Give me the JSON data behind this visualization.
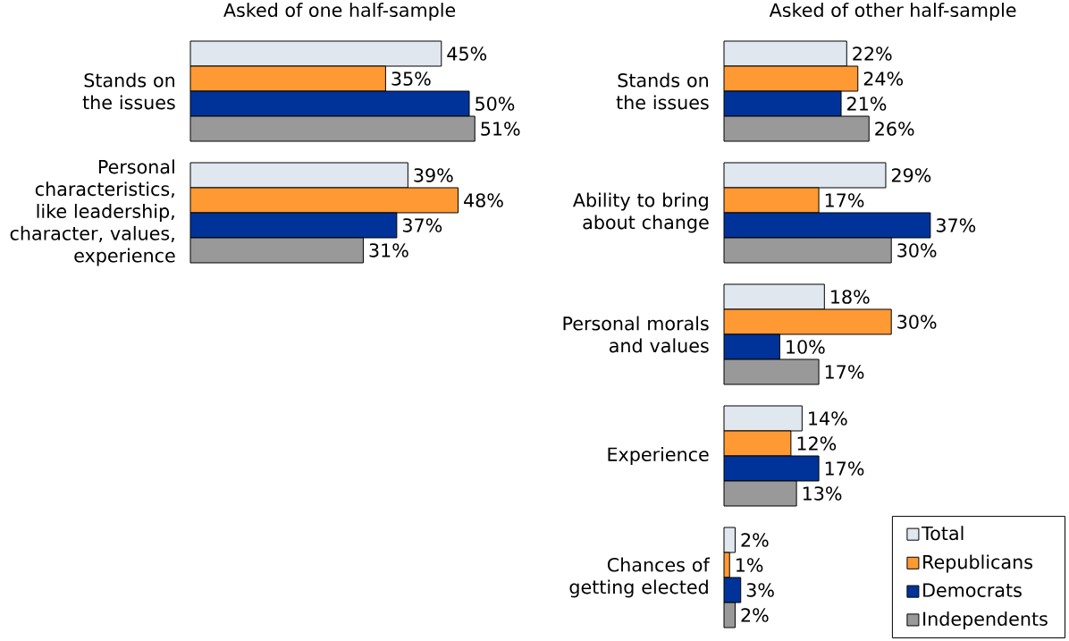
{
  "chart_data": [
    {
      "type": "bar",
      "orientation": "horizontal",
      "title": "Asked of one half-sample",
      "categories": [
        "Stands on the issues",
        "Personal characteristics, like leadership, character, values, experience"
      ],
      "series": [
        {
          "color": "#e0e7ef",
          "values": [
            45,
            39
          ],
          "value_labels": [
            "45%",
            "39%"
          ]
        },
        {
          "color": "#ff9933",
          "values": [
            35,
            48
          ],
          "value_labels": [
            "35%",
            "48%"
          ]
        },
        {
          "color": "#003399",
          "values": [
            50,
            37
          ],
          "value_labels": [
            "50%",
            "37%"
          ]
        },
        {
          "color": "#999999",
          "values": [
            51,
            31
          ],
          "value_labels": [
            "51%",
            "31%"
          ]
        }
      ]
    },
    {
      "type": "bar",
      "orientation": "horizontal",
      "title": "Asked of other half-sample",
      "categories": [
        "Stands on the issues",
        "Ability to bring about change",
        "Personal morals and values",
        "Experience",
        "Chances of getting elected"
      ],
      "series": [
        {
          "name": "Total",
          "color": "#e0e7ef",
          "values": [
            22,
            29,
            18,
            14,
            2
          ],
          "value_labels": [
            "22%",
            "29%",
            "18%",
            "14%",
            "2%"
          ]
        },
        {
          "name": "Republicans",
          "color": "#ff9933",
          "values": [
            24,
            17,
            30,
            12,
            1
          ],
          "value_labels": [
            "24%",
            "17%",
            "30%",
            "12%",
            "1%"
          ]
        },
        {
          "name": "Democrats",
          "color": "#003399",
          "values": [
            21,
            37,
            10,
            17,
            3
          ],
          "value_labels": [
            "21%",
            "37%",
            "10%",
            "17%",
            "3%"
          ]
        },
        {
          "name": "Independents",
          "color": "#999999",
          "values": [
            26,
            30,
            17,
            13,
            2
          ],
          "value_labels": [
            "26%",
            "30%",
            "17%",
            "13%",
            "2%"
          ]
        }
      ],
      "legend": "bottom right"
    }
  ]
}
